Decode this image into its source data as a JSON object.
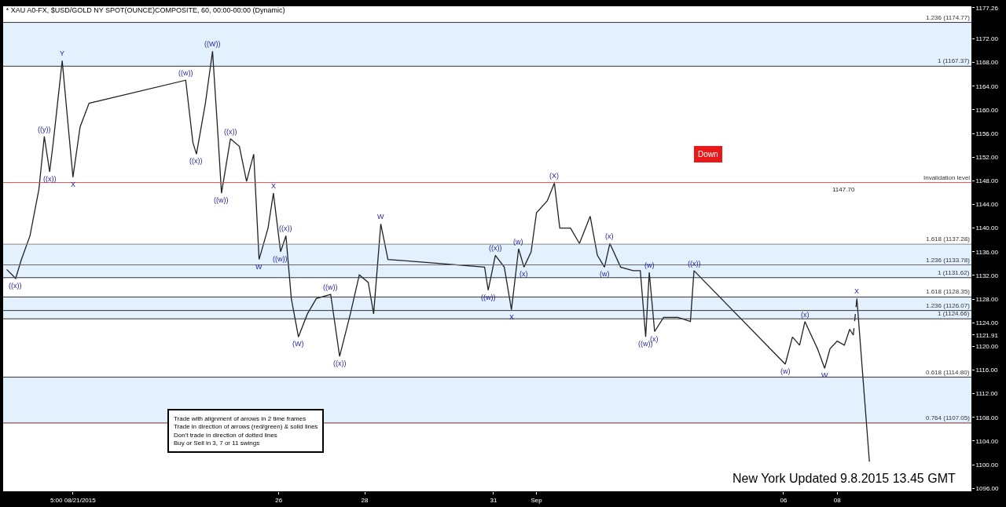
{
  "chart_data": {
    "type": "line",
    "title": "* XAU A0-FX, $USD/GOLD NY SPOT(OUNCE)COMPOSITE, 60, 00:00-00:00 (Dynamic)",
    "xlim": [
      "2015-08-19T14:00",
      "2015-09-11T03:00"
    ],
    "ylim": [
      1095.5,
      1177.5
    ],
    "xticks": [
      {
        "value": "2015-08-21T05:00",
        "label": "5:00 08/21/2015"
      },
      {
        "value": "2015-08-26",
        "label": "26"
      },
      {
        "value": "2015-08-28",
        "label": "28"
      },
      {
        "value": "2015-08-31",
        "label": "31"
      },
      {
        "value": "2015-09-01",
        "label": "Sep"
      },
      {
        "value": "2015-09-06T18:00",
        "label": "06"
      },
      {
        "value": "2015-09-08",
        "label": "08"
      }
    ],
    "yticks": [
      {
        "value": 1096,
        "label": "1096.00"
      },
      {
        "value": 1100,
        "label": "1100.00"
      },
      {
        "value": 1104,
        "label": "1104.00"
      },
      {
        "value": 1108,
        "label": "1108.00"
      },
      {
        "value": 1112,
        "label": "1112.00"
      },
      {
        "value": 1116,
        "label": "1116.00"
      },
      {
        "value": 1120,
        "label": "1120.00"
      },
      {
        "value": 1121.91,
        "label": "1121.91"
      },
      {
        "value": 1124,
        "label": "1124.00"
      },
      {
        "value": 1128,
        "label": "1128.00"
      },
      {
        "value": 1132,
        "label": "1132.00"
      },
      {
        "value": 1136,
        "label": "1136.00"
      },
      {
        "value": 1140,
        "label": "1140.00"
      },
      {
        "value": 1144,
        "label": "1144.00"
      },
      {
        "value": 1148,
        "label": "1148.00"
      },
      {
        "value": 1152,
        "label": "1152.00"
      },
      {
        "value": 1156,
        "label": "1156.00"
      },
      {
        "value": 1160,
        "label": "1160.00"
      },
      {
        "value": 1164,
        "label": "1164.00"
      },
      {
        "value": 1168,
        "label": "1168.00"
      },
      {
        "value": 1172,
        "label": "1172.00"
      },
      {
        "value": 1177.26,
        "label": "1177.26"
      }
    ],
    "grid": false,
    "series": [
      {
        "color": "#222222",
        "x": [
          "2015-08-19T16:00",
          "2015-08-19T21:00",
          "2015-08-20T00:00",
          "2015-08-20T05:00",
          "2015-08-20T10:00",
          "2015-08-20T13:00",
          "2015-08-20T16:00",
          "2015-08-20T18:00",
          "2015-08-20T23:00",
          "2015-08-21T02:00",
          "2015-08-21T05:00",
          "2015-08-21T09:00",
          "2015-08-21T14:00",
          "2015-08-23T20:00",
          "2015-08-24T00:00",
          "2015-08-24T02:00",
          "2015-08-24T07:00",
          "2015-08-24T11:00",
          "2015-08-24T14:00",
          "2015-08-24T16:00",
          "2015-08-24T21:00",
          "2015-08-25T02:00",
          "2015-08-25T06:00",
          "2015-08-25T10:00",
          "2015-08-25T13:00",
          "2015-08-25T18:00",
          "2015-08-25T21:00",
          "2015-08-26T01:00",
          "2015-08-26T04:00",
          "2015-08-26T07:00",
          "2015-08-26T11:00",
          "2015-08-26T16:00",
          "2015-08-26T21:00",
          "2015-08-27T05:00",
          "2015-08-27T10:00",
          "2015-08-27T16:00",
          "2015-08-27T21:00",
          "2015-08-28T02:00",
          "2015-08-28T05:00",
          "2015-08-28T09:00",
          "2015-08-28T13:00",
          "2015-08-30T19:00",
          "2015-08-30T21:00",
          "2015-08-31T01:00",
          "2015-08-31T06:00",
          "2015-08-31T10:00",
          "2015-08-31T14:00",
          "2015-08-31T17:00",
          "2015-08-31T21:00",
          "2015-09-01T00:00",
          "2015-09-01T06:00",
          "2015-09-01T10:00",
          "2015-09-01T13:00",
          "2015-09-01T19:00",
          "2015-09-02T00:00",
          "2015-09-02T06:00",
          "2015-09-02T10:00",
          "2015-09-02T14:00",
          "2015-09-02T17:00",
          "2015-09-02T23:00",
          "2015-09-03T06:00",
          "2015-09-03T10:00",
          "2015-09-03T13:00",
          "2015-09-03T15:00",
          "2015-09-03T18:00",
          "2015-09-03T23:00",
          "2015-09-04T07:00",
          "2015-09-04T14:00",
          "2015-09-04T16:00",
          "2015-09-06T19:00",
          "2015-09-06T23:00",
          "2015-09-07T03:00",
          "2015-09-07T06:00",
          "2015-09-07T09:00",
          "2015-09-07T13:00",
          "2015-09-07T17:00",
          "2015-09-07T20:00",
          "2015-09-08T00:00",
          "2015-09-08T04:00",
          "2015-09-08T07:00",
          "2015-09-08T09:00"
        ],
        "values": [
          1133.0,
          1131.5,
          1134.5,
          1138.7,
          1146.6,
          1155.5,
          1149.5,
          1154.5,
          1168.3,
          1158.4,
          1148.6,
          1157.1,
          1161.1,
          1165.0,
          1154.5,
          1152.5,
          1161.1,
          1169.9,
          1155.8,
          1145.9,
          1155.1,
          1153.8,
          1147.9,
          1152.5,
          1134.7,
          1140.0,
          1145.9,
          1136.0,
          1138.7,
          1128.1,
          1121.6,
          1125.5,
          1128.1,
          1128.8,
          1118.3,
          1125.5,
          1132.1,
          1130.8,
          1125.5,
          1140.7,
          1134.7,
          1133.4,
          1129.5,
          1135.4,
          1133.4,
          1126.2,
          1136.5,
          1133.4,
          1136.0,
          1142.6,
          1144.6,
          1147.6,
          1140.0,
          1140.0,
          1137.4,
          1142.0,
          1135.4,
          1133.4,
          1137.4,
          1133.4,
          1132.8,
          1132.8,
          1121.6,
          1132.5,
          1122.5,
          1124.9,
          1124.9,
          1124.2,
          1132.8,
          1117.0,
          1121.6,
          1120.2,
          1124.2,
          1122.2,
          1119.6,
          1116.3,
          1119.6,
          1120.9,
          1120.2,
          1122.9,
          1121.9
        ]
      },
      {
        "color": "#222222",
        "line_style": "dashed",
        "x": [
          "2015-09-08T09:00",
          "2015-09-08T11:00"
        ],
        "values": [
          1121.9,
          1128.1
        ]
      },
      {
        "color": "#222222",
        "x": [
          "2015-09-08T11:00",
          "2015-09-08T18:00"
        ],
        "values": [
          1128.1,
          1100.5
        ]
      }
    ],
    "ref_lines": [
      {
        "axis": "y",
        "value": 1174.77,
        "label": "1.236 (1174.77)",
        "color": "#333333"
      },
      {
        "axis": "y",
        "value": 1167.37,
        "label": "1 (1167.37)",
        "color": "#333333"
      },
      {
        "axis": "y",
        "value": 1147.7,
        "label": "Invalidation level",
        "color": "#e05050"
      },
      {
        "axis": "y",
        "value": 1137.28,
        "label": "1.618 (1137.28)",
        "color": "#888888"
      },
      {
        "axis": "y",
        "value": 1133.78,
        "label": "1.236 (1133.78)",
        "color": "#666666"
      },
      {
        "axis": "y",
        "value": 1131.62,
        "label": "1 (1131.62)",
        "color": "#333333"
      },
      {
        "axis": "y",
        "value": 1128.35,
        "label": "1.618 (1128.35)",
        "color": "#333333"
      },
      {
        "axis": "y",
        "value": 1126.07,
        "label": "1.236 (1126.07)",
        "color": "#333333"
      },
      {
        "axis": "y",
        "value": 1124.66,
        "label": "1 (1124.66)",
        "color": "#333333"
      },
      {
        "axis": "y",
        "value": 1114.8,
        "label": "0.618 (1114.80)",
        "color": "#333333"
      },
      {
        "axis": "y",
        "value": 1107.05,
        "label": "0.764 (1107.05)",
        "color": "#7a2a2a"
      }
    ],
    "bands": [
      {
        "axis": "y",
        "from": 1167.37,
        "to": 1174.77,
        "color": "#bfe0fa"
      },
      {
        "axis": "y",
        "from": 1131.62,
        "to": 1137.28,
        "color": "#bfe0fa"
      },
      {
        "axis": "y",
        "from": 1124.66,
        "to": 1128.35,
        "color": "#bfe0fa"
      },
      {
        "axis": "y",
        "from": 1107.05,
        "to": 1114.8,
        "color": "#bfe0fa"
      }
    ],
    "annotations": [
      "Trade with alignment of arrows in 2 time frames\nTrade in direction of arrows (red/green) & solid lines\nDon't trade in direction of dotted lines\nBuy or Sell in 3, 7 or 11 swings",
      "New York Updated 9.8.2015 13.45 GMT",
      "Down",
      {
        "text": "1147.70",
        "x": "2015-09-07T19:00",
        "y": 1147.7
      },
      {
        "text": "((W))",
        "x": "2015-08-24T11:00",
        "y": 1169.9
      },
      {
        "text": "Y",
        "x": "2015-08-20T23:00",
        "y": 1168.3
      },
      {
        "text": "((w))",
        "x": "2015-08-23T20:00",
        "y": 1165.0
      },
      {
        "text": "((y))",
        "x": "2015-08-20T13:00",
        "y": 1155.5
      },
      {
        "text": "((x))",
        "x": "2015-08-20T16:00",
        "y": 1149.5
      },
      {
        "text": "X",
        "x": "2015-08-21T05:00",
        "y": 1148.6
      },
      {
        "text": "((x))",
        "x": "2015-08-24T02:00",
        "y": 1152.5
      },
      {
        "text": "((x))",
        "x": "2015-08-24T21:00",
        "y": 1155.1
      },
      {
        "text": "((w))",
        "x": "2015-08-24T16:00",
        "y": 1145.9
      },
      {
        "text": "X",
        "x": "2015-08-25T21:00",
        "y": 1145.9
      },
      {
        "text": "((x))",
        "x": "2015-08-26T04:00",
        "y": 1138.7
      },
      {
        "text": "W",
        "x": "2015-08-25T13:00",
        "y": 1134.7
      },
      {
        "text": "((w))",
        "x": "2015-08-26T01:00",
        "y": 1136.0
      },
      {
        "text": "((x))",
        "x": "2015-08-19T21:00",
        "y": 1131.5
      },
      {
        "text": "(W)",
        "x": "2015-08-26T11:00",
        "y": 1121.6
      },
      {
        "text": "((w))",
        "x": "2015-08-27T05:00",
        "y": 1128.8
      },
      {
        "text": "((x))",
        "x": "2015-08-27T10:00",
        "y": 1118.3
      },
      {
        "text": "W",
        "x": "2015-08-28T09:00",
        "y": 1140.7
      },
      {
        "text": "((x))",
        "x": "2015-08-31T01:00",
        "y": 1135.4
      },
      {
        "text": "((w))",
        "x": "2015-08-30T21:00",
        "y": 1129.5
      },
      {
        "text": "X",
        "x": "2015-08-31T10:00",
        "y": 1126.2
      },
      {
        "text": "(w)",
        "x": "2015-08-31T14:00",
        "y": 1136.5
      },
      {
        "text": "(x)",
        "x": "2015-08-31T17:00",
        "y": 1133.4
      },
      {
        "text": "(X)",
        "x": "2015-09-01T10:00",
        "y": 1147.6
      },
      {
        "text": "(x)",
        "x": "2015-09-02T17:00",
        "y": 1137.4
      },
      {
        "text": "(w)",
        "x": "2015-09-02T14:00",
        "y": 1133.4
      },
      {
        "text": "((w))",
        "x": "2015-09-03T13:00",
        "y": 1121.6
      },
      {
        "text": "(w)",
        "x": "2015-09-03T15:00",
        "y": 1132.5
      },
      {
        "text": "(x)",
        "x": "2015-09-03T18:00",
        "y": 1122.5
      },
      {
        "text": "((x))",
        "x": "2015-09-04T16:00",
        "y": 1132.8
      },
      {
        "text": "(w)",
        "x": "2015-09-06T19:00",
        "y": 1117.0
      },
      {
        "text": "(x)",
        "x": "2015-09-07T06:00",
        "y": 1124.2
      },
      {
        "text": "W",
        "x": "2015-09-07T17:00",
        "y": 1116.3
      },
      {
        "text": "X",
        "x": "2015-09-08T11:00",
        "y": 1128.1
      }
    ]
  }
}
